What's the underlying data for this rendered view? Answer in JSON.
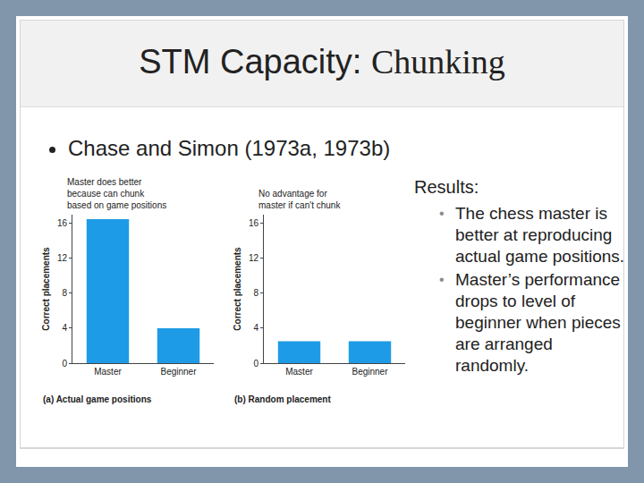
{
  "slide": {
    "title": [
      "STM Capacity:",
      "Chunking"
    ],
    "bullet": "Chase and Simon (1973a, 1973b)",
    "results_heading": "Results:",
    "results": [
      "The chess master is better at reproducing actual game positions.",
      "Master’s performance drops to level of beginner when pieces are arranged randomly."
    ]
  },
  "chart_data": [
    {
      "type": "bar",
      "annotations": [
        "Master does better",
        "because can chunk",
        "based on game positions"
      ],
      "caption": "(a) Actual game positions",
      "y_label": "Correct placements",
      "categories": [
        "Master",
        "Beginner"
      ],
      "values": [
        16.5,
        4
      ],
      "color": "#1e9be6",
      "ylim": [
        0,
        17
      ],
      "yticks": [
        0,
        4,
        8,
        12,
        16
      ],
      "grid": false
    },
    {
      "type": "bar",
      "annotations": [
        "No advantage for",
        "master if can't chunk"
      ],
      "caption": "(b) Random placement",
      "y_label": "Correct placements",
      "categories": [
        "Master",
        "Beginner"
      ],
      "values": [
        2.5,
        2.5
      ],
      "color": "#1e9be6",
      "ylim": [
        0,
        17
      ],
      "yticks": [
        0,
        4,
        8,
        12,
        16
      ],
      "grid": false
    }
  ]
}
